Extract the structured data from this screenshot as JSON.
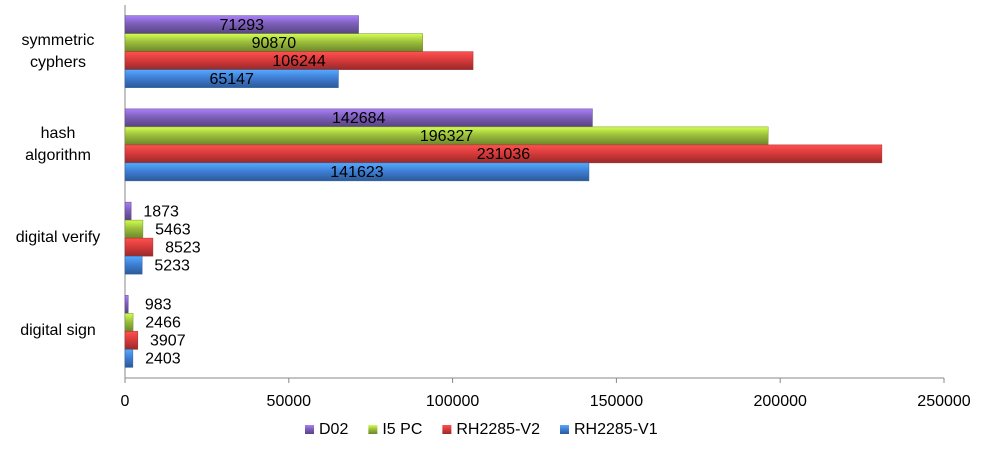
{
  "chart_data": {
    "type": "bar",
    "orientation": "horizontal",
    "categories": [
      "symmetric cyphers",
      "hash algorithm",
      "digital verify",
      "digital sign"
    ],
    "series": [
      {
        "name": "D02",
        "color": "#7d5fb9",
        "values": [
          71293,
          142684,
          1873,
          983
        ]
      },
      {
        "name": "I5 PC",
        "color": "#9cc03c",
        "values": [
          90870,
          196327,
          5463,
          2466
        ]
      },
      {
        "name": "RH2285-V2",
        "color": "#d93b3b",
        "values": [
          106244,
          231036,
          8523,
          3907
        ]
      },
      {
        "name": "RH2285-V1",
        "color": "#3f7fd6",
        "values": [
          65147,
          141623,
          5233,
          2403
        ]
      }
    ],
    "xlim": [
      0,
      250000
    ],
    "xticks": [
      0,
      50000,
      100000,
      150000,
      200000,
      250000
    ],
    "grid": false,
    "legend": "bottom"
  }
}
